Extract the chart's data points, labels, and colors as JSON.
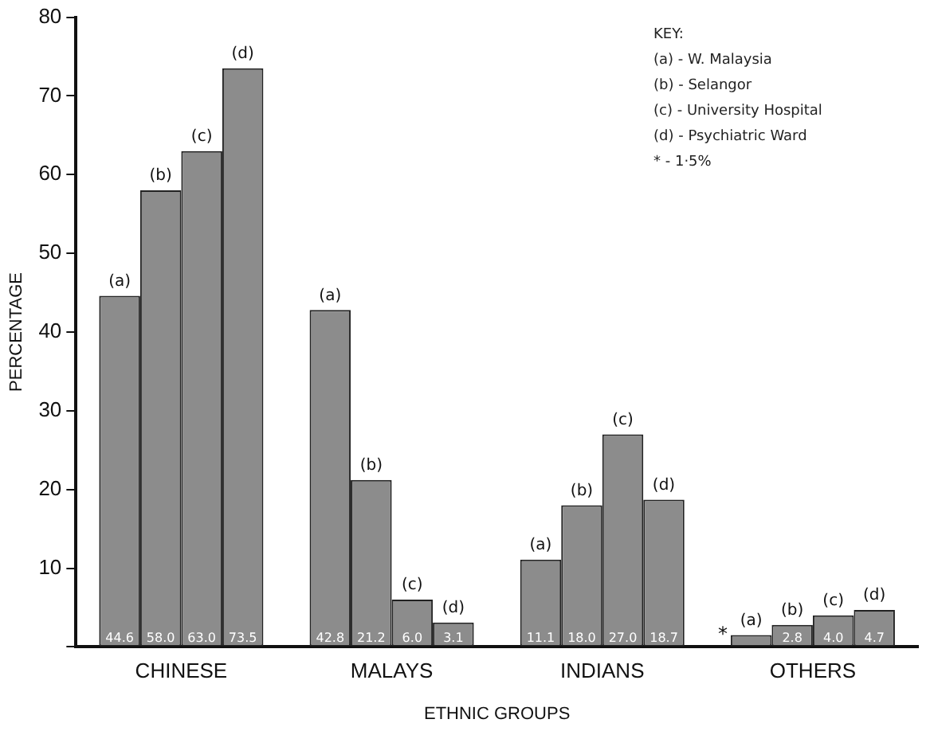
{
  "chart_data": {
    "type": "bar",
    "xlabel": "ETHNIC GROUPS",
    "ylabel": "PERCENTAGE",
    "categories": [
      "CHINESE",
      "MALAYS",
      "INDIANS",
      "OTHERS"
    ],
    "series": [
      {
        "name": "(a)",
        "color": "#8c8c8c",
        "values": [
          44.6,
          42.8,
          11.1,
          1.5
        ],
        "value_labels": [
          "44.6",
          "42.8",
          "11.1",
          "*"
        ]
      },
      {
        "name": "(b)",
        "color": "#8c8c8c",
        "values": [
          58.0,
          21.2,
          18.0,
          2.8
        ],
        "value_labels": [
          "58.0",
          "21.2",
          "18.0",
          "2.8"
        ]
      },
      {
        "name": "(c)",
        "color": "#8c8c8c",
        "values": [
          63.0,
          6.0,
          27.0,
          4.0
        ],
        "value_labels": [
          "63.0",
          "6.0",
          "27.0",
          "4.0"
        ]
      },
      {
        "name": "(d)",
        "color": "#8c8c8c",
        "values": [
          73.5,
          3.1,
          18.7,
          4.7
        ],
        "value_labels": [
          "73.5",
          "3.1",
          "18.7",
          "4.7"
        ]
      }
    ],
    "ylim": [
      0,
      80
    ],
    "yticks": [
      {
        "value": 0,
        "label": null
      },
      10,
      20,
      30,
      40,
      50,
      60,
      70,
      80
    ],
    "grid": false,
    "legend": false,
    "annotations": [
      "KEY:",
      "(a) - W. Malaysia",
      "(b) - Selangor",
      "(c) - University Hospital",
      "(d) - Psychiatric Ward",
      "* - 1·5%"
    ]
  }
}
